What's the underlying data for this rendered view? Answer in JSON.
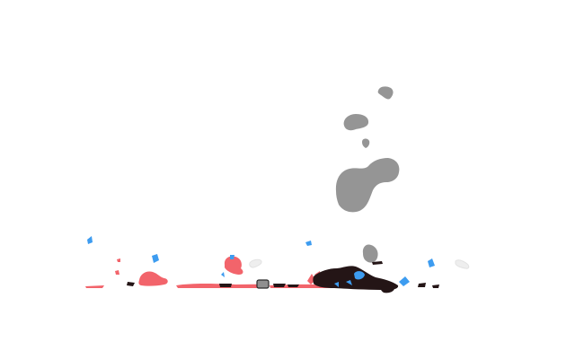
{
  "scene": {
    "background": "#ffffff",
    "colors": {
      "smoke": "#959595",
      "debris_red": "#f2646b",
      "debris_dark": "#241516",
      "spark_blue": "#3d9cf0",
      "canister": "#8f8f8f",
      "canister_outline": "#2a2a2a",
      "faint_puff": "#eeeeee"
    },
    "elements": [
      "smoke-cloud",
      "red-debris",
      "dark-wreckage",
      "blue-sparks",
      "metal-canister",
      "ground-trail"
    ]
  }
}
